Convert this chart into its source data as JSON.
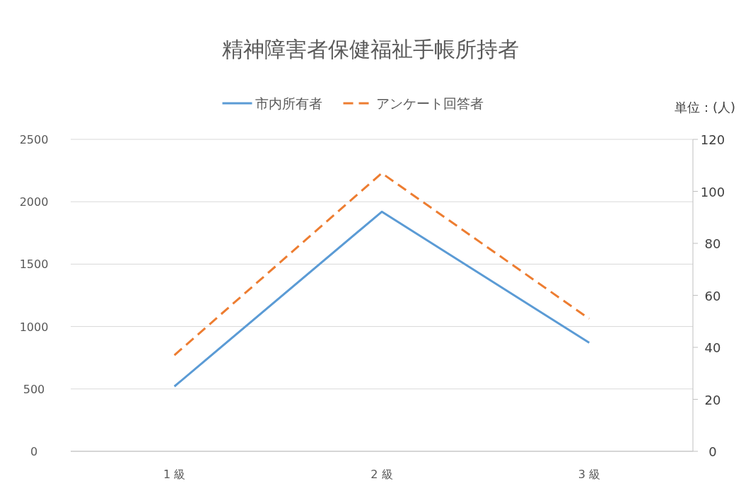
{
  "chart_data": {
    "type": "line",
    "title": "精神障害者保健福祉手帳所持者",
    "y2label": "単位：(人)",
    "categories": [
      "1 級",
      "2 級",
      "3 級"
    ],
    "series": [
      {
        "name": "市内所有者",
        "color": "#5b9bd5",
        "values": [
          520,
          1920,
          870
        ],
        "line_style": "solid"
      },
      {
        "name": "アンケート回答者",
        "color": "#ed7d31",
        "values": [
          37,
          107,
          51
        ],
        "axis": "y2",
        "line_style": "dashed"
      }
    ],
    "ylim": [
      0,
      2500
    ],
    "yticks": [
      0,
      500,
      1000,
      1500,
      2000,
      2500
    ],
    "y2lim": [
      0,
      120
    ],
    "y2ticks": [
      0,
      20,
      40,
      60,
      80,
      100,
      120
    ],
    "grid": "y",
    "legend": "top",
    "marker": "none"
  }
}
